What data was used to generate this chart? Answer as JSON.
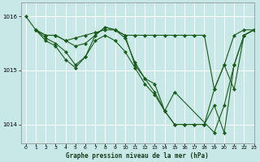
{
  "title": "Graphe pression niveau de la mer (hPa)",
  "bg_color": "#c8e8e8",
  "grid_color": "#ffffff",
  "line_color": "#1a5c1a",
  "xlim": [
    -0.5,
    23
  ],
  "ylim": [
    1013.65,
    1016.25
  ],
  "yticks": [
    1014,
    1015,
    1016
  ],
  "xticks": [
    0,
    1,
    2,
    3,
    4,
    5,
    6,
    7,
    8,
    9,
    10,
    11,
    12,
    13,
    14,
    15,
    16,
    17,
    18,
    19,
    20,
    21,
    22,
    23
  ],
  "series": [
    {
      "x": [
        0,
        1,
        2,
        3,
        4,
        5,
        6,
        7,
        8,
        9,
        10,
        11,
        12,
        13,
        14,
        15,
        16,
        17,
        18,
        19,
        20,
        21,
        22,
        23
      ],
      "y": [
        1016.0,
        1015.75,
        1015.65,
        1015.65,
        1015.55,
        1015.6,
        1015.65,
        1015.7,
        1015.75,
        1015.75,
        1015.65,
        1015.65,
        1015.65,
        1015.65,
        1015.65,
        1015.65,
        1015.65,
        1015.65,
        1015.65,
        1014.65,
        1015.1,
        1015.65,
        1015.75,
        1015.75
      ]
    },
    {
      "x": [
        1,
        2,
        3,
        4,
        5,
        6,
        7,
        8,
        9,
        10,
        11,
        12,
        13,
        14,
        15,
        16,
        17,
        18,
        19,
        20,
        21,
        22,
        23
      ],
      "y": [
        1015.75,
        1015.65,
        1015.65,
        1015.55,
        1015.45,
        1015.5,
        1015.65,
        1015.8,
        1015.75,
        1015.65,
        1015.1,
        1014.85,
        1014.75,
        1014.25,
        1014.0,
        1014.0,
        1014.0,
        1014.0,
        1014.65,
        1015.1,
        1014.65,
        1015.65,
        1015.75
      ]
    },
    {
      "x": [
        1,
        2,
        3,
        4,
        5,
        6,
        7,
        8,
        9,
        10,
        11,
        12,
        13,
        14,
        15,
        16,
        17,
        18,
        19,
        20,
        21,
        22,
        23
      ],
      "y": [
        1015.75,
        1015.6,
        1015.5,
        1015.35,
        1015.1,
        1015.25,
        1015.65,
        1015.8,
        1015.75,
        1015.6,
        1015.15,
        1014.85,
        1014.6,
        1014.25,
        1014.0,
        1014.0,
        1014.0,
        1014.0,
        1014.35,
        1013.85,
        1015.1,
        1015.65,
        1015.75
      ]
    },
    {
      "x": [
        1,
        2,
        3,
        4,
        5,
        6,
        7,
        8,
        9,
        10,
        11,
        12,
        13,
        14,
        15,
        19,
        20,
        21,
        22,
        23
      ],
      "y": [
        1015.75,
        1015.55,
        1015.45,
        1015.2,
        1015.05,
        1015.25,
        1015.55,
        1015.65,
        1015.55,
        1015.35,
        1015.05,
        1014.75,
        1014.55,
        1014.25,
        1014.6,
        1013.85,
        1014.35,
        1015.1,
        1015.65,
        1015.75
      ]
    }
  ]
}
